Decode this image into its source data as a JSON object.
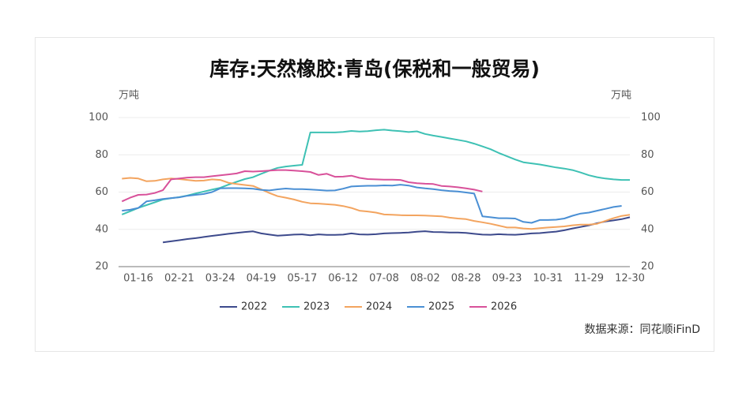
{
  "chart_data": {
    "type": "line",
    "title": "库存:天然橡胶:青岛(保税和一般贸易)",
    "y_unit": "万吨",
    "y2_unit": "万吨",
    "source": "数据来源：同花顺iFinD",
    "categories": [
      null,
      null,
      "01-16",
      null,
      null,
      null,
      null,
      "02-21",
      null,
      null,
      null,
      null,
      "03-24",
      null,
      null,
      null,
      null,
      "04-19",
      null,
      null,
      null,
      null,
      "05-17",
      null,
      null,
      null,
      null,
      "06-12",
      null,
      null,
      null,
      null,
      "07-08",
      null,
      null,
      null,
      null,
      "08-02",
      null,
      null,
      null,
      null,
      "08-28",
      null,
      null,
      null,
      null,
      "09-23",
      null,
      null,
      null,
      null,
      "10-31",
      null,
      null,
      null,
      null,
      "11-29",
      null,
      null,
      null,
      null,
      "12-30"
    ],
    "ylim": [
      20,
      100
    ],
    "yticks": [
      20,
      40,
      60,
      80,
      100
    ],
    "y2lim": [
      20,
      100
    ],
    "y2ticks": [
      20,
      40,
      60,
      80,
      100
    ],
    "grid": true,
    "legend": "bottom",
    "series": [
      {
        "name": "2022",
        "color": "#3d4a8c",
        "values": [
          null,
          null,
          null,
          null,
          null,
          33,
          33.6,
          34.2,
          34.8,
          35.3,
          35.9,
          36.5,
          37,
          37.6,
          38.1,
          38.6,
          38.9,
          37.8,
          37.2,
          36.6,
          36.9,
          37.2,
          37.3,
          36.8,
          37.3,
          37,
          37,
          37.2,
          37.8,
          37.3,
          37.2,
          37.4,
          37.8,
          38,
          38.1,
          38.3,
          38.7,
          39,
          38.6,
          38.5,
          38.3,
          38.3,
          38.1,
          37.6,
          37.2,
          37.1,
          37.4,
          37.2,
          37.1,
          37.4,
          37.8,
          38,
          38.4,
          38.8,
          39.5,
          40.5,
          41.3,
          42.2,
          43.3,
          44.2,
          44.8,
          45.5,
          46.5
        ]
      },
      {
        "name": "2023",
        "color": "#3ec1b4",
        "values": [
          48,
          49.7,
          51.5,
          53,
          54.5,
          56,
          56.7,
          57.3,
          58.2,
          59.3,
          60.3,
          61.3,
          62.3,
          64,
          65.5,
          67,
          68,
          69.8,
          71.5,
          73,
          73.7,
          74.2,
          74.6,
          92,
          92,
          92,
          92,
          92.3,
          92.8,
          92.5,
          92.7,
          93.2,
          93.5,
          93,
          92.7,
          92.2,
          92.6,
          91.2,
          90.3,
          89.6,
          88.8,
          88,
          87.2,
          86,
          84.5,
          83,
          81,
          79.2,
          77.5,
          76,
          75.4,
          74.8,
          74,
          73.2,
          72.6,
          71.8,
          70.5,
          69,
          68,
          67.3,
          66.8,
          66.5,
          66.5
        ]
      },
      {
        "name": "2024",
        "color": "#f3a45f",
        "values": [
          67.2,
          67.6,
          67.3,
          65.8,
          66,
          66.8,
          67.3,
          67,
          66.5,
          66,
          66.2,
          66.8,
          66.5,
          65,
          64.3,
          63.8,
          63.3,
          61.5,
          59.5,
          57.8,
          57,
          56,
          54.8,
          54,
          53.8,
          53.5,
          53.2,
          52.5,
          51.5,
          50,
          49.6,
          49,
          48,
          47.8,
          47.6,
          47.5,
          47.5,
          47.4,
          47.2,
          47,
          46.3,
          45.8,
          45.5,
          44.5,
          43.8,
          43,
          42,
          41,
          41,
          40.5,
          40.2,
          40.6,
          41,
          41.3,
          41.6,
          42.2,
          42.5,
          42.5,
          43,
          44.5,
          46,
          47.2,
          47.8
        ]
      },
      {
        "name": "2025",
        "color": "#4a8fd4",
        "values": [
          50,
          50.5,
          51.5,
          55,
          55.6,
          56.3,
          56.8,
          57.2,
          58,
          58.5,
          59,
          60,
          62,
          62.1,
          62.1,
          62,
          61.8,
          61.2,
          60.9,
          61.5,
          61.9,
          61.6,
          61.6,
          61.4,
          61.1,
          60.8,
          60.9,
          61.8,
          63,
          63.2,
          63.4,
          63.4,
          63.6,
          63.5,
          64,
          63.5,
          62.5,
          62,
          61.6,
          61,
          60.6,
          60.3,
          59.8,
          59.2,
          47,
          46.5,
          46,
          46,
          45.8,
          44,
          43.5,
          45,
          45,
          45.2,
          45.8,
          47.3,
          48.5,
          49,
          50,
          51,
          52,
          52.6,
          null
        ]
      },
      {
        "name": "2026",
        "color": "#d8519a",
        "values": [
          55,
          57,
          58.5,
          58.7,
          59.5,
          61,
          66.8,
          67.3,
          67.8,
          68,
          68,
          68.5,
          69,
          69.5,
          70,
          71.2,
          71,
          71.2,
          71.5,
          71.8,
          71.8,
          71.5,
          71.2,
          70.8,
          69.2,
          69.8,
          68.2,
          68.3,
          68.8,
          67.6,
          67,
          66.8,
          66.7,
          66.7,
          66.5,
          65.3,
          64.8,
          64.5,
          64.3,
          63.3,
          63,
          62.6,
          62,
          61.3,
          60.3,
          null,
          null,
          null,
          null,
          null,
          null,
          null,
          null,
          null,
          null,
          null,
          null,
          null,
          null,
          null,
          null,
          null,
          null
        ]
      }
    ]
  }
}
